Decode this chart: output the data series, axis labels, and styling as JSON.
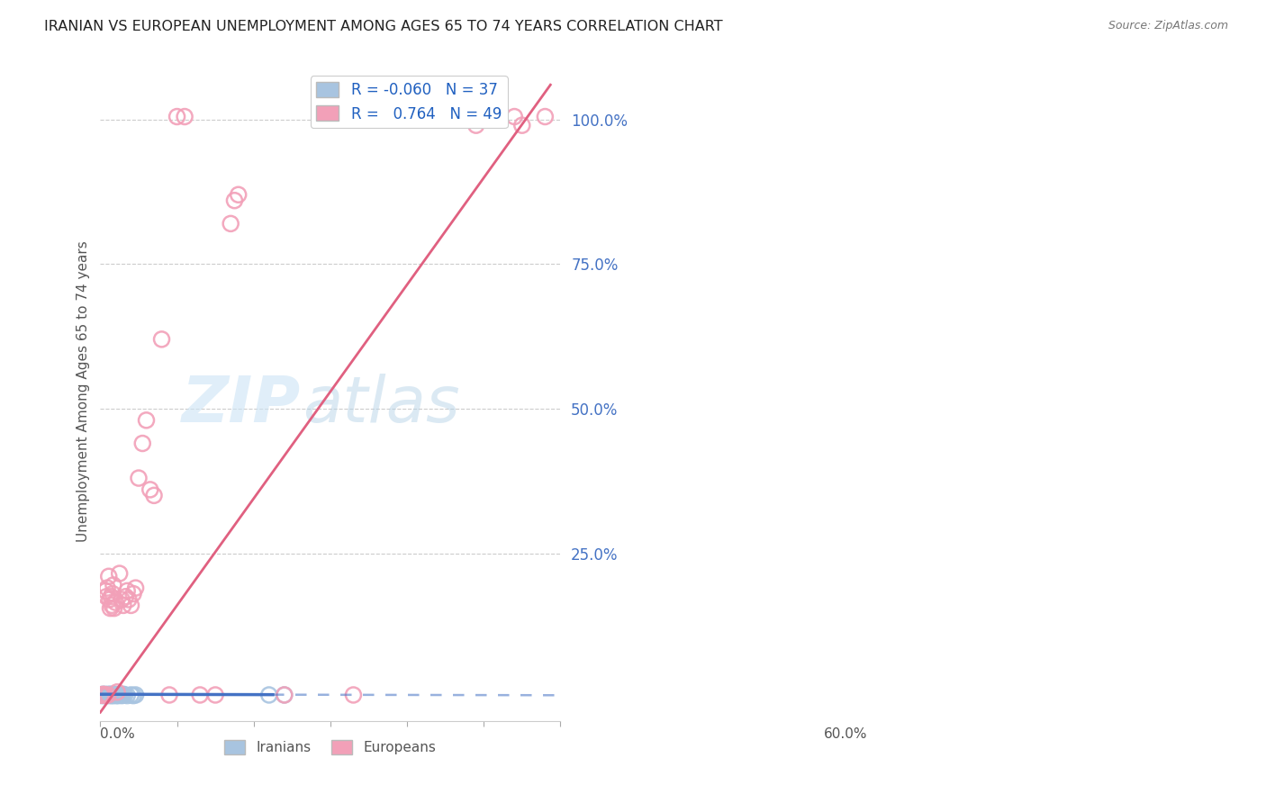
{
  "title": "IRANIAN VS EUROPEAN UNEMPLOYMENT AMONG AGES 65 TO 74 YEARS CORRELATION CHART",
  "source": "Source: ZipAtlas.com",
  "ylabel": "Unemployment Among Ages 65 to 74 years",
  "ytick_values": [
    0.25,
    0.5,
    0.75,
    1.0
  ],
  "ytick_labels": [
    "25.0%",
    "50.0%",
    "75.0%",
    "100.0%"
  ],
  "xmin": 0.0,
  "xmax": 0.6,
  "ymin": -0.04,
  "ymax": 1.1,
  "iranian_R": -0.06,
  "iranian_N": 37,
  "european_R": 0.764,
  "european_N": 49,
  "iranian_color": "#a8c4e0",
  "european_color": "#f2a0b8",
  "iranian_line_color": "#4472c4",
  "european_line_color": "#e06080",
  "watermark_zip": "ZIP",
  "watermark_atlas": "atlas",
  "iranian_points_x": [
    0.001,
    0.002,
    0.003,
    0.003,
    0.004,
    0.005,
    0.006,
    0.007,
    0.008,
    0.009,
    0.01,
    0.011,
    0.012,
    0.013,
    0.014,
    0.015,
    0.015,
    0.016,
    0.017,
    0.018,
    0.019,
    0.02,
    0.021,
    0.022,
    0.023,
    0.024,
    0.025,
    0.027,
    0.028,
    0.03,
    0.032,
    0.035,
    0.04,
    0.043,
    0.046,
    0.22,
    0.24
  ],
  "iranian_points_y": [
    0.005,
    0.004,
    0.005,
    0.006,
    0.005,
    0.004,
    0.006,
    0.005,
    0.004,
    0.005,
    0.006,
    0.005,
    0.004,
    0.006,
    0.005,
    0.004,
    0.006,
    0.005,
    0.004,
    0.005,
    0.006,
    0.005,
    0.004,
    0.005,
    0.004,
    0.006,
    0.005,
    0.005,
    0.004,
    0.006,
    0.005,
    0.004,
    0.005,
    0.004,
    0.005,
    0.005,
    0.005
  ],
  "european_points_x": [
    0.001,
    0.002,
    0.003,
    0.004,
    0.005,
    0.006,
    0.007,
    0.008,
    0.009,
    0.01,
    0.011,
    0.012,
    0.013,
    0.014,
    0.015,
    0.016,
    0.017,
    0.018,
    0.02,
    0.022,
    0.025,
    0.028,
    0.03,
    0.033,
    0.035,
    0.037,
    0.04,
    0.043,
    0.046,
    0.05,
    0.055,
    0.06,
    0.065,
    0.07,
    0.08,
    0.09,
    0.1,
    0.11,
    0.13,
    0.15,
    0.17,
    0.175,
    0.18,
    0.24,
    0.33,
    0.49,
    0.54,
    0.55,
    0.58
  ],
  "european_points_y": [
    0.005,
    0.005,
    0.005,
    0.006,
    0.005,
    0.005,
    0.185,
    0.175,
    0.19,
    0.005,
    0.21,
    0.17,
    0.155,
    0.175,
    0.16,
    0.18,
    0.195,
    0.155,
    0.165,
    0.01,
    0.215,
    0.17,
    0.16,
    0.175,
    0.185,
    0.17,
    0.16,
    0.18,
    0.19,
    0.38,
    0.44,
    0.48,
    0.36,
    0.35,
    0.62,
    0.005,
    1.005,
    1.005,
    0.005,
    0.005,
    0.82,
    0.86,
    0.87,
    0.005,
    0.005,
    0.99,
    1.005,
    0.99,
    1.005
  ],
  "european_line_x0": 0.0,
  "european_line_x1": 0.587,
  "european_line_y0": -0.025,
  "european_line_y1": 1.06,
  "iranian_line_solid_x0": 0.0,
  "iranian_line_solid_x1": 0.225,
  "iranian_line_dashed_x1": 0.6,
  "iranian_line_y_at_0": 0.0062,
  "iranian_line_y_at_solid_end": 0.0055,
  "iranian_line_y_at_dashed_end": 0.0045
}
